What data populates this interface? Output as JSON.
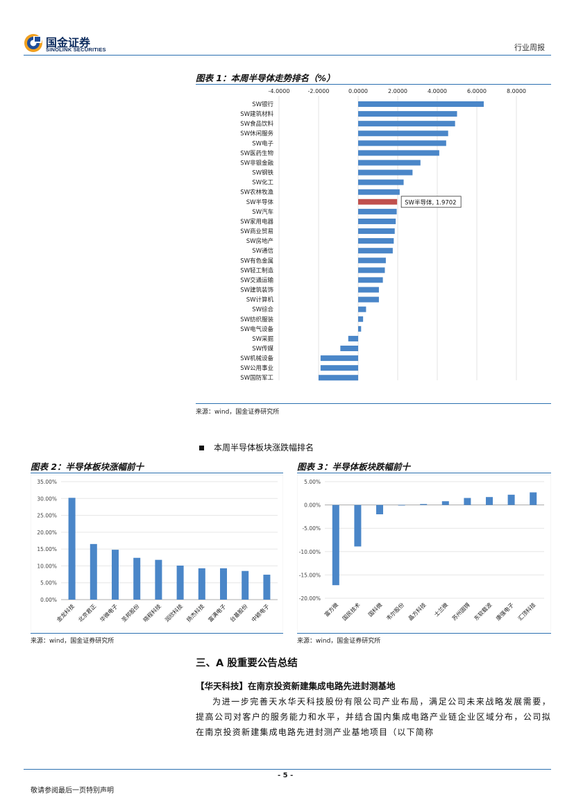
{
  "header": {
    "logo_cn": "国金证券",
    "logo_en": "SINOLINK SECURITIES",
    "report_type": "行业周报"
  },
  "figure1": {
    "title": "图表 1：本周半导体走势排名（%）",
    "source": "来源：wind，国金证券研究所",
    "highlight_label": "SW半导体, 1.9702"
  },
  "bullet": "本周半导体板块涨跌幅排名",
  "figure2": {
    "title": "图表 2：半导体板块涨幅前十",
    "source": "来源：wind，国金证券研究所"
  },
  "figure3": {
    "title": "图表 3：半导体板块跌幅前十",
    "source": "来源：wind，国金证券研究所"
  },
  "section": {
    "heading": "三、A 股重要公告总结",
    "subheading": "【华天科技】在南京投资新建集成电路先进封测基地",
    "paragraph": "为进一步完善天水华天科技股份有限公司产业布局，满足公司未来战略发展需要，提高公司对客户的服务能力和水平，并结合国内集成电路产业链企业区域分布，公司拟在南京投资新建集成电路先进封测产业基地项目（以下简称"
  },
  "footer": {
    "page": "- 5 -",
    "disclaimer": "敬请参阅最后一页特别声明"
  },
  "colors": {
    "bar": "#4a86c8",
    "highlight": "#c0504d",
    "rule": "#2a6fb0"
  },
  "chart_data": [
    {
      "type": "bar",
      "orientation": "horizontal",
      "xlim": [
        -4,
        8
      ],
      "xticks": [
        "-4.0000",
        "-2.0000",
        "0.0000",
        "2.0000",
        "4.0000",
        "6.0000",
        "8.0000"
      ],
      "categories": [
        "SW银行",
        "SW建筑材料",
        "SW食品饮料",
        "SW休闲服务",
        "SW电子",
        "SW医药生物",
        "SW非银金融",
        "SW钢铁",
        "SW化工",
        "SW农林牧渔",
        "SW半导体",
        "SW汽车",
        "SW家用电器",
        "SW商业贸易",
        "SW房地产",
        "SW通信",
        "SW有色金属",
        "SW轻工制造",
        "SW交通运输",
        "SW建筑装饰",
        "SW计算机",
        "SW综合",
        "SW纺织服装",
        "SW电气设备",
        "SW采掘",
        "SW传媒",
        "SW机械设备",
        "SW公用事业",
        "SW国防军工"
      ],
      "values": [
        6.35,
        5.0,
        4.9,
        4.55,
        4.45,
        4.1,
        3.15,
        2.75,
        2.3,
        2.1,
        1.9702,
        1.95,
        1.9,
        1.85,
        1.8,
        1.75,
        1.4,
        1.35,
        1.25,
        1.05,
        1.05,
        0.4,
        0.25,
        0.15,
        -0.5,
        -0.9,
        -1.9,
        -1.9,
        -2.0
      ],
      "highlight_index": 10
    },
    {
      "type": "bar",
      "ylim": [
        0,
        35
      ],
      "yticks": [
        "0.00%",
        "5.00%",
        "10.00%",
        "15.00%",
        "20.00%",
        "25.00%",
        "30.00%",
        "35.00%"
      ],
      "categories": [
        "金龙科技",
        "北京君正",
        "华微电子",
        "圣邦股份",
        "晓程科技",
        "润欣科技",
        "扬杰科技",
        "富满电子",
        "台基股份",
        "中颖电子"
      ],
      "values": [
        30.2,
        16.5,
        14.8,
        12.4,
        11.8,
        10.1,
        9.3,
        9.3,
        8.5,
        7.4
      ]
    },
    {
      "type": "bar",
      "ylim": [
        -20,
        5
      ],
      "yticks": [
        "5.00%",
        "0.00%",
        "-5.00%",
        "-10.00%",
        "-15.00%",
        "-20.00%"
      ],
      "categories": [
        "富方微",
        "国民技术",
        "国科微",
        "韦尔股份",
        "晶方科技",
        "士兰微",
        "苏州固锝",
        "东软载波",
        "康强电子",
        "汇顶科技"
      ],
      "values": [
        -17.2,
        -8.9,
        -2.0,
        0.0,
        0.2,
        0.8,
        1.5,
        1.7,
        2.2,
        2.7
      ]
    }
  ]
}
